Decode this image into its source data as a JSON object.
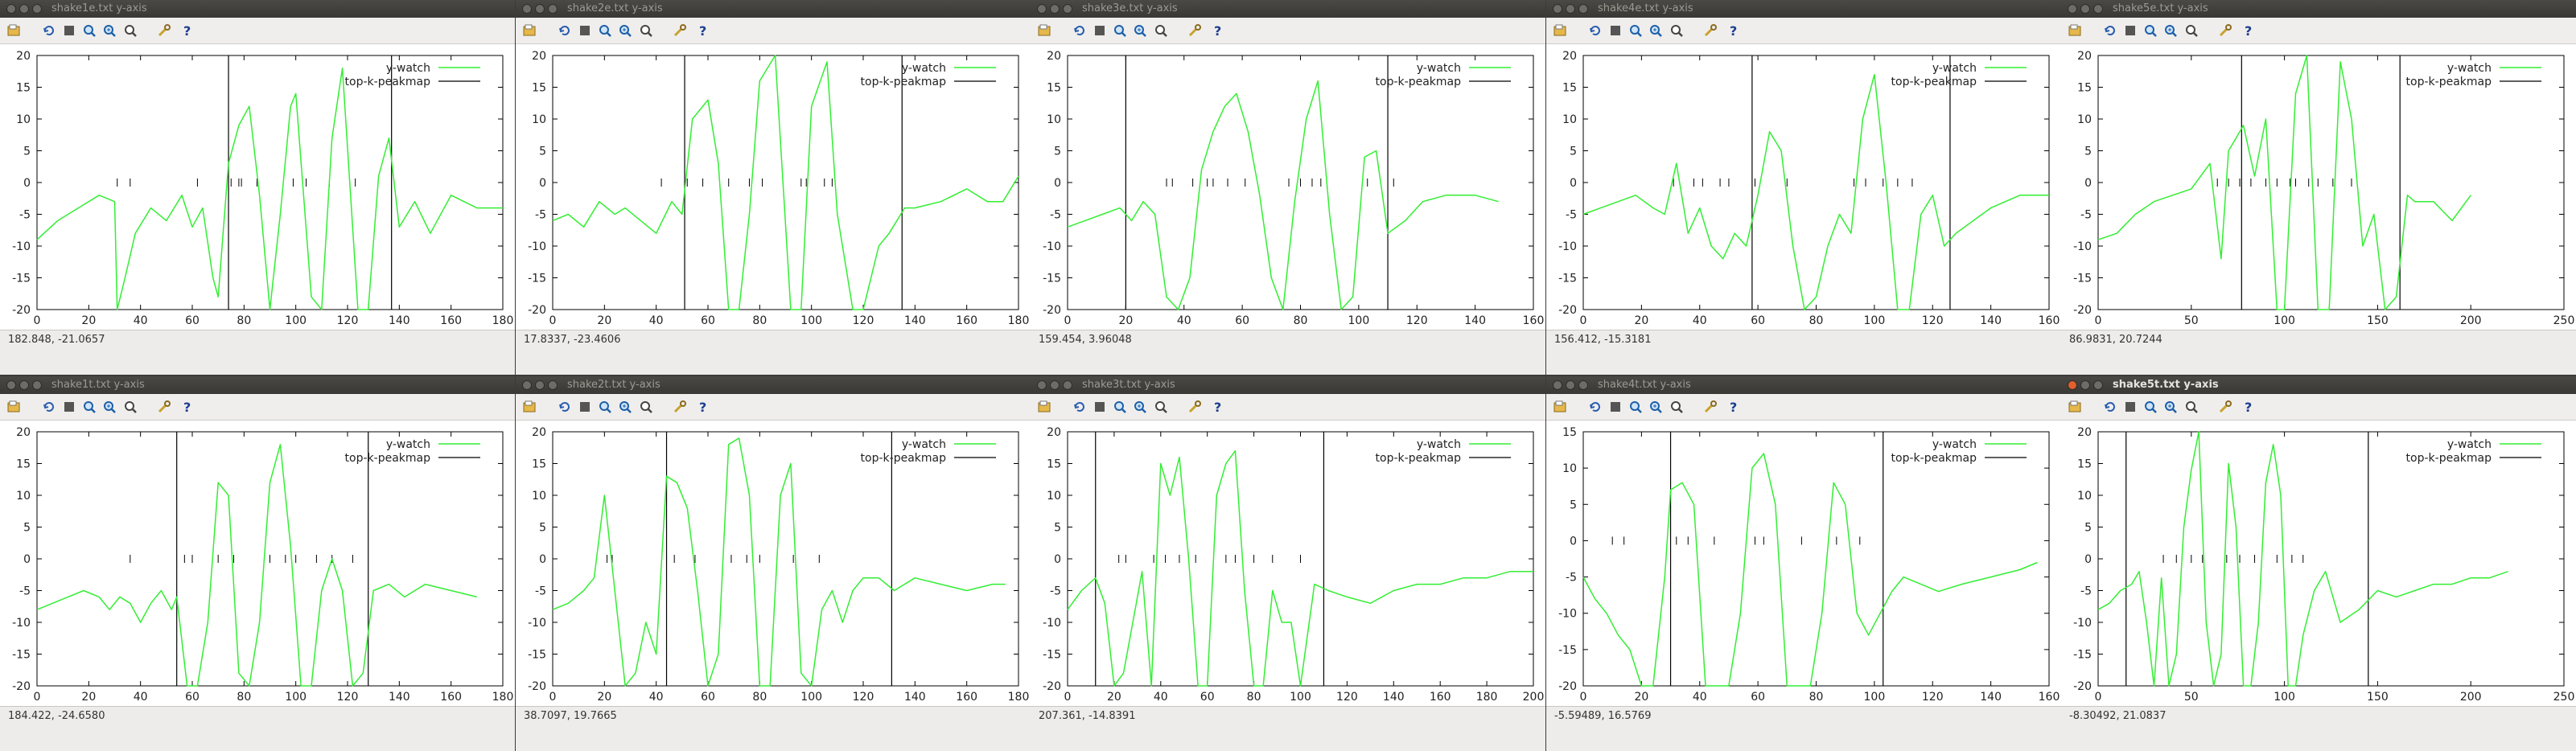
{
  "legend": {
    "series1": "y-watch",
    "series2": "top-k-peakmap"
  },
  "colors": {
    "series1": "#33ee33",
    "series2": "#000000",
    "close_active": "#e25f2e"
  },
  "toolbar_icons": [
    "export-icon",
    "replot-icon",
    "grid-icon",
    "zoom-previous-icon",
    "zoom-next-icon",
    "unzoom-icon",
    "settings-icon",
    "help-icon"
  ],
  "windows": [
    {
      "title": "shake1e.txt y-axis",
      "status": "182.848, -21.0657",
      "active": false
    },
    {
      "title": "shake2e.txt y-axis",
      "status": "17.8337, -23.4606",
      "active": false
    },
    {
      "title": "shake3e.txt y-axis",
      "status": "159.454, 3.96048",
      "active": false
    },
    {
      "title": "shake4e.txt y-axis",
      "status": "156.412, -15.3181",
      "active": false
    },
    {
      "title": "shake5e.txt y-axis",
      "status": "86.9831, 20.7244",
      "active": false
    },
    {
      "title": "shake1t.txt y-axis",
      "status": "184.422, -24.6580",
      "active": false
    },
    {
      "title": "shake2t.txt y-axis",
      "status": "38.7097, 19.7665",
      "active": false
    },
    {
      "title": "shake3t.txt y-axis",
      "status": "207.361, -14.8391",
      "active": false
    },
    {
      "title": "shake4t.txt y-axis",
      "status": "-5.59489, 16.5769",
      "active": false
    },
    {
      "title": "shake5t.txt y-axis",
      "status": "-8.30492, 21.0837",
      "active": true
    }
  ],
  "chart_data": [
    {
      "type": "line",
      "xlim": [
        0,
        180
      ],
      "ylim": [
        -20,
        20
      ],
      "xticks": [
        0,
        20,
        40,
        60,
        80,
        100,
        120,
        140,
        160,
        180
      ],
      "yticks": [
        -20,
        -15,
        -10,
        -5,
        0,
        5,
        10,
        15,
        20
      ],
      "vlines": [
        74,
        137
      ],
      "marks": [
        31,
        36,
        62,
        75,
        78,
        79,
        85,
        99,
        104,
        113,
        123
      ],
      "x": [
        0,
        8,
        16,
        24,
        30,
        31,
        34,
        38,
        44,
        50,
        56,
        60,
        64,
        68,
        70,
        74,
        78,
        82,
        86,
        90,
        94,
        98,
        100,
        106,
        110,
        114,
        118,
        124,
        128,
        132,
        136,
        140,
        146,
        152,
        160,
        170,
        180
      ],
      "y": [
        -9,
        -6,
        -4,
        -2,
        -3,
        -20,
        -15,
        -8,
        -4,
        -6,
        -2,
        -7,
        -4,
        -15,
        -18,
        3,
        9,
        12,
        -2,
        -20,
        -5,
        12,
        14,
        -18,
        -20,
        7,
        18,
        -20,
        -20,
        1,
        7,
        -7,
        -3,
        -8,
        -2,
        -4,
        -4
      ]
    },
    {
      "type": "line",
      "xlim": [
        0,
        180
      ],
      "ylim": [
        -20,
        20
      ],
      "xticks": [
        0,
        20,
        40,
        60,
        80,
        100,
        120,
        140,
        160,
        180
      ],
      "yticks": [
        -20,
        -15,
        -10,
        -5,
        0,
        5,
        10,
        15,
        20
      ],
      "vlines": [
        51,
        135
      ],
      "marks": [
        42,
        52,
        58,
        68,
        76,
        81,
        96,
        98,
        105,
        108
      ],
      "x": [
        0,
        6,
        12,
        18,
        24,
        28,
        34,
        40,
        46,
        50,
        54,
        60,
        64,
        68,
        72,
        76,
        80,
        86,
        92,
        96,
        100,
        106,
        110,
        116,
        120,
        126,
        130,
        136,
        140,
        150,
        160,
        168,
        174,
        180
      ],
      "y": [
        -6,
        -5,
        -7,
        -3,
        -5,
        -4,
        -6,
        -8,
        -3,
        -5,
        10,
        13,
        3,
        -20,
        -20,
        -5,
        16,
        20,
        -20,
        -20,
        12,
        19,
        -5,
        -20,
        -20,
        -10,
        -8,
        -4,
        -4,
        -3,
        -1,
        -3,
        -3,
        1
      ]
    },
    {
      "type": "line",
      "xlim": [
        0,
        160
      ],
      "ylim": [
        -20,
        20
      ],
      "xticks": [
        0,
        20,
        40,
        60,
        80,
        100,
        120,
        140,
        160
      ],
      "yticks": [
        -20,
        -15,
        -10,
        -5,
        0,
        5,
        10,
        15,
        20
      ],
      "vlines": [
        20,
        110
      ],
      "marks": [
        34,
        36,
        43,
        48,
        50,
        55,
        61,
        76,
        80,
        84,
        87,
        103,
        112
      ],
      "x": [
        0,
        6,
        12,
        18,
        22,
        26,
        30,
        34,
        38,
        42,
        46,
        50,
        54,
        58,
        62,
        66,
        70,
        74,
        78,
        82,
        86,
        90,
        94,
        98,
        102,
        106,
        110,
        116,
        122,
        130,
        140,
        148
      ],
      "y": [
        -7,
        -6,
        -5,
        -4,
        -6,
        -3,
        -5,
        -18,
        -20,
        -15,
        2,
        8,
        12,
        14,
        8,
        -2,
        -15,
        -20,
        -3,
        10,
        16,
        -5,
        -20,
        -18,
        4,
        5,
        -8,
        -6,
        -3,
        -2,
        -2,
        -3
      ]
    },
    {
      "type": "line",
      "xlim": [
        0,
        160
      ],
      "ylim": [
        -20,
        20
      ],
      "xticks": [
        0,
        20,
        40,
        60,
        80,
        100,
        120,
        140,
        160
      ],
      "yticks": [
        -20,
        -15,
        -10,
        -5,
        0,
        5,
        10,
        15,
        20
      ],
      "vlines": [
        58,
        126
      ],
      "marks": [
        31,
        38,
        41,
        47,
        50,
        59,
        70,
        93,
        97,
        103,
        108,
        113
      ],
      "x": [
        0,
        6,
        12,
        18,
        24,
        28,
        32,
        36,
        40,
        44,
        48,
        52,
        56,
        60,
        64,
        68,
        72,
        76,
        80,
        84,
        88,
        92,
        96,
        100,
        104,
        108,
        112,
        116,
        120,
        124,
        128,
        134,
        140,
        150,
        160
      ],
      "y": [
        -5,
        -4,
        -3,
        -2,
        -4,
        -5,
        3,
        -8,
        -4,
        -10,
        -12,
        -8,
        -10,
        -2,
        8,
        5,
        -10,
        -20,
        -18,
        -10,
        -5,
        -8,
        10,
        17,
        0,
        -20,
        -20,
        -5,
        -2,
        -10,
        -8,
        -6,
        -4,
        -2,
        -2
      ]
    },
    {
      "type": "line",
      "xlim": [
        0,
        250
      ],
      "ylim": [
        -20,
        20
      ],
      "xticks": [
        0,
        50,
        100,
        150,
        200,
        250
      ],
      "yticks": [
        -20,
        -15,
        -10,
        -5,
        0,
        5,
        10,
        15,
        20
      ],
      "vlines": [
        77,
        162
      ],
      "marks": [
        64,
        70,
        76,
        82,
        90,
        96,
        103,
        106,
        113,
        118,
        126,
        136
      ],
      "x": [
        0,
        10,
        20,
        30,
        40,
        50,
        60,
        66,
        70,
        74,
        78,
        84,
        90,
        96,
        100,
        106,
        112,
        118,
        124,
        130,
        136,
        142,
        148,
        154,
        160,
        166,
        170,
        180,
        190,
        200
      ],
      "y": [
        -9,
        -8,
        -5,
        -3,
        -2,
        -1,
        3,
        -12,
        5,
        7,
        9,
        1,
        10,
        -20,
        -20,
        14,
        20,
        -20,
        -20,
        19,
        10,
        -10,
        -5,
        -20,
        -18,
        -2,
        -3,
        -3,
        -6,
        -2
      ]
    },
    {
      "type": "line",
      "xlim": [
        0,
        180
      ],
      "ylim": [
        -20,
        20
      ],
      "xticks": [
        0,
        20,
        40,
        60,
        80,
        100,
        120,
        140,
        160,
        180
      ],
      "yticks": [
        -20,
        -15,
        -10,
        -5,
        0,
        5,
        10,
        15,
        20
      ],
      "vlines": [
        54,
        128
      ],
      "marks": [
        36,
        57,
        60,
        70,
        76,
        90,
        96,
        100,
        108,
        114,
        122
      ],
      "x": [
        0,
        6,
        12,
        18,
        24,
        28,
        32,
        36,
        40,
        44,
        48,
        52,
        54,
        58,
        62,
        66,
        70,
        74,
        78,
        82,
        86,
        90,
        94,
        98,
        102,
        106,
        110,
        114,
        118,
        122,
        126,
        130,
        136,
        142,
        150,
        160,
        170
      ],
      "y": [
        -8,
        -7,
        -6,
        -5,
        -6,
        -8,
        -6,
        -7,
        -10,
        -7,
        -5,
        -8,
        -6,
        -20,
        -20,
        -10,
        12,
        10,
        -18,
        -20,
        -10,
        12,
        18,
        2,
        -20,
        -20,
        -5,
        0,
        -5,
        -20,
        -18,
        -5,
        -4,
        -6,
        -4,
        -5,
        -6
      ]
    },
    {
      "type": "line",
      "xlim": [
        0,
        180
      ],
      "ylim": [
        -20,
        20
      ],
      "xticks": [
        0,
        20,
        40,
        60,
        80,
        100,
        120,
        140,
        160,
        180
      ],
      "yticks": [
        -20,
        -15,
        -10,
        -5,
        0,
        5,
        10,
        15,
        20
      ],
      "vlines": [
        44,
        131
      ],
      "marks": [
        21,
        23,
        44,
        47,
        55,
        69,
        75,
        80,
        93,
        103
      ],
      "x": [
        0,
        6,
        12,
        16,
        20,
        24,
        28,
        32,
        36,
        40,
        44,
        48,
        52,
        56,
        60,
        64,
        68,
        72,
        76,
        80,
        84,
        88,
        92,
        96,
        100,
        104,
        108,
        112,
        116,
        120,
        126,
        132,
        140,
        150,
        160,
        170,
        175
      ],
      "y": [
        -8,
        -7,
        -5,
        -3,
        10,
        -5,
        -20,
        -18,
        -10,
        -15,
        13,
        12,
        8,
        -5,
        -20,
        -15,
        18,
        19,
        10,
        -20,
        -20,
        10,
        15,
        -18,
        -20,
        -8,
        -5,
        -10,
        -5,
        -3,
        -3,
        -5,
        -3,
        -4,
        -5,
        -4,
        -4
      ]
    },
    {
      "type": "line",
      "xlim": [
        0,
        200
      ],
      "ylim": [
        -20,
        20
      ],
      "xticks": [
        0,
        20,
        40,
        60,
        80,
        100,
        120,
        140,
        160,
        180,
        200
      ],
      "yticks": [
        -20,
        -15,
        -10,
        -5,
        0,
        5,
        10,
        15,
        20
      ],
      "vlines": [
        12,
        110
      ],
      "marks": [
        22,
        25,
        37,
        42,
        48,
        55,
        68,
        72,
        80,
        88,
        100
      ],
      "x": [
        0,
        6,
        12,
        16,
        20,
        24,
        28,
        32,
        36,
        40,
        44,
        48,
        52,
        56,
        60,
        64,
        68,
        72,
        76,
        80,
        84,
        88,
        92,
        96,
        100,
        106,
        112,
        120,
        130,
        140,
        150,
        160,
        170,
        180,
        190,
        200
      ],
      "y": [
        -8,
        -5,
        -3,
        -7,
        -20,
        -18,
        -10,
        -2,
        -20,
        15,
        10,
        16,
        0,
        -20,
        -20,
        10,
        15,
        17,
        -5,
        -20,
        -20,
        -5,
        -10,
        -10,
        -20,
        -4,
        -5,
        -6,
        -7,
        -5,
        -4,
        -4,
        -3,
        -3,
        -2,
        -2
      ]
    },
    {
      "type": "line",
      "xlim": [
        0,
        160
      ],
      "ylim": [
        -20,
        15
      ],
      "xticks": [
        0,
        20,
        40,
        60,
        80,
        100,
        120,
        140,
        160
      ],
      "yticks": [
        -20,
        -15,
        -10,
        -5,
        0,
        5,
        10,
        15
      ],
      "vlines": [
        30,
        103
      ],
      "marks": [
        10,
        14,
        32,
        36,
        45,
        59,
        62,
        75,
        87,
        95
      ],
      "x": [
        0,
        4,
        8,
        12,
        16,
        20,
        24,
        28,
        30,
        34,
        38,
        42,
        46,
        50,
        54,
        58,
        62,
        66,
        70,
        74,
        78,
        82,
        86,
        90,
        94,
        98,
        102,
        106,
        110,
        116,
        122,
        130,
        140,
        150,
        156
      ],
      "y": [
        -5,
        -8,
        -10,
        -13,
        -15,
        -20,
        -20,
        -5,
        7,
        8,
        5,
        -20,
        -20,
        -20,
        -10,
        10,
        12,
        5,
        -20,
        -20,
        -20,
        -10,
        8,
        5,
        -10,
        -13,
        -10,
        -7,
        -5,
        -6,
        -7,
        -6,
        -5,
        -4,
        -3
      ]
    },
    {
      "type": "line",
      "xlim": [
        0,
        250
      ],
      "ylim": [
        -20,
        20
      ],
      "xticks": [
        0,
        50,
        100,
        150,
        200,
        250
      ],
      "yticks": [
        -20,
        -15,
        -10,
        -5,
        0,
        5,
        10,
        15,
        20
      ],
      "vlines": [
        15,
        145
      ],
      "marks": [
        35,
        42,
        50,
        56,
        69,
        76,
        84,
        96,
        104,
        110
      ],
      "x": [
        0,
        6,
        12,
        18,
        22,
        26,
        30,
        34,
        38,
        42,
        46,
        50,
        54,
        58,
        62,
        66,
        70,
        74,
        78,
        82,
        86,
        90,
        94,
        98,
        102,
        106,
        110,
        116,
        122,
        130,
        140,
        150,
        160,
        170,
        180,
        190,
        200,
        210,
        220
      ],
      "y": [
        -8,
        -7,
        -5,
        -4,
        -2,
        -10,
        -20,
        -3,
        -20,
        -15,
        5,
        14,
        20,
        -10,
        -20,
        -15,
        15,
        5,
        -20,
        -20,
        -10,
        12,
        18,
        10,
        -20,
        -20,
        -12,
        -5,
        -2,
        -10,
        -8,
        -5,
        -6,
        -5,
        -4,
        -4,
        -3,
        -3,
        -2
      ]
    }
  ]
}
